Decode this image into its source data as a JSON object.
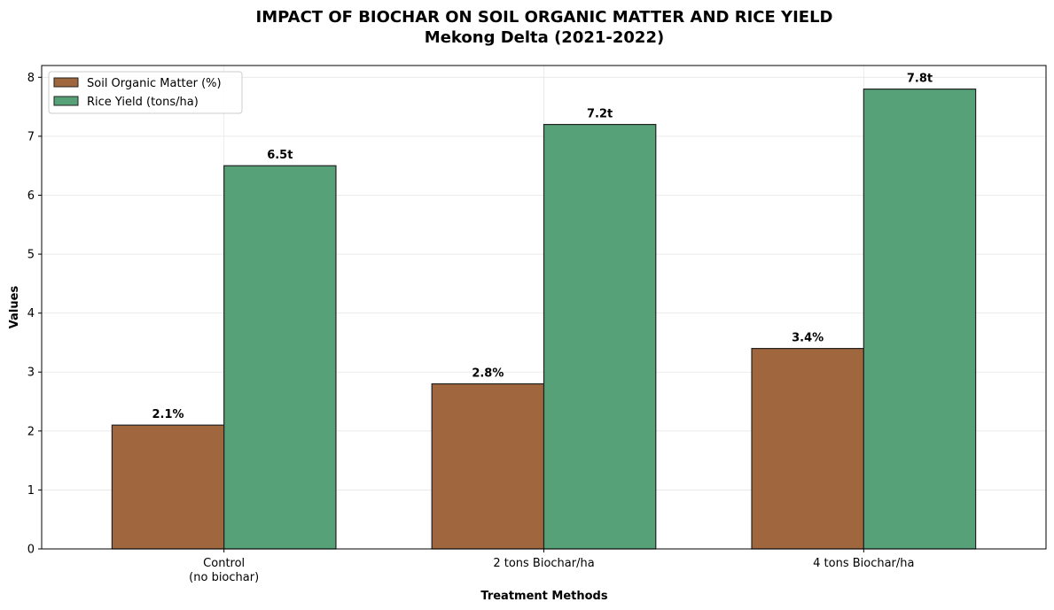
{
  "chart_data": {
    "type": "bar",
    "title": "IMPACT OF BIOCHAR ON SOIL ORGANIC MATTER AND RICE YIELD",
    "subtitle": "Mekong Delta (2021-2022)",
    "xlabel": "Treatment Methods",
    "ylabel": "Values",
    "categories": [
      [
        "Control",
        "(no biochar)"
      ],
      [
        "2 tons Biochar/ha"
      ],
      [
        "4 tons Biochar/ha"
      ]
    ],
    "series": [
      {
        "name": "Soil Organic Matter (%)",
        "values": [
          2.1,
          2.8,
          3.4
        ],
        "labels": [
          "2.1%",
          "2.8%",
          "3.4%"
        ],
        "color": "#a0673f"
      },
      {
        "name": "Rice Yield (tons/ha)",
        "values": [
          6.5,
          7.2,
          7.8
        ],
        "labels": [
          "6.5t",
          "7.2t",
          "7.8t"
        ],
        "color": "#56a177"
      }
    ],
    "ylim": [
      0,
      8.2
    ],
    "yticks": [
      0,
      1,
      2,
      3,
      4,
      5,
      6,
      7,
      8
    ],
    "grid": true,
    "legend_position": "top-left"
  }
}
